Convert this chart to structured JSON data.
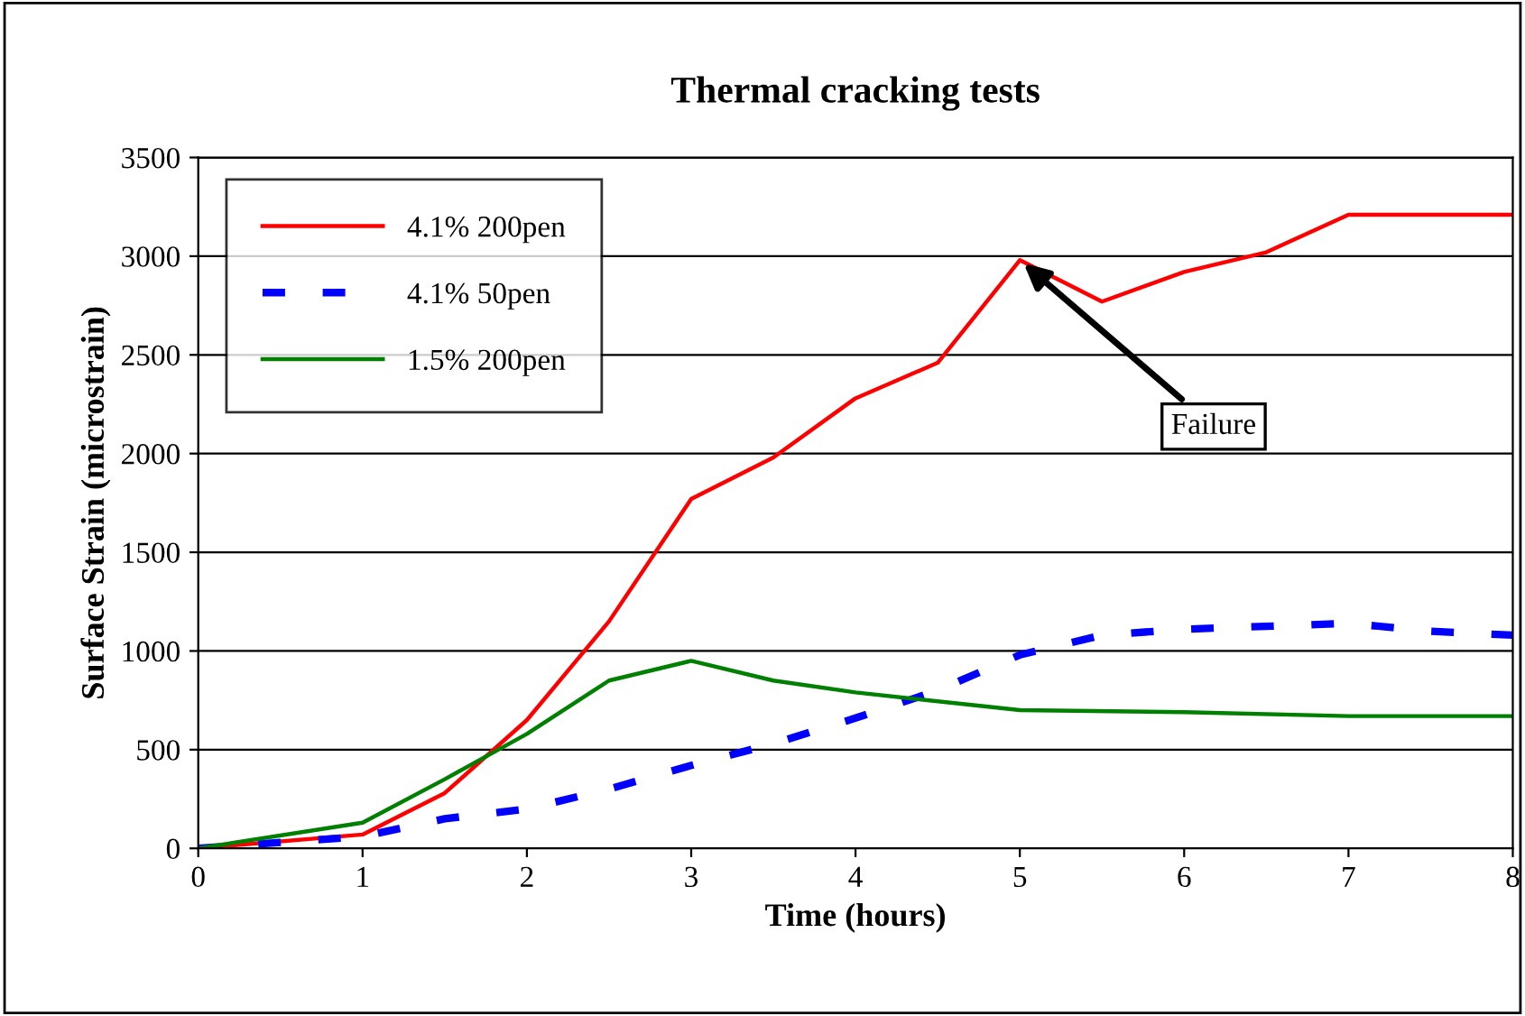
{
  "chart_data": {
    "type": "line",
    "title": "Thermal cracking tests",
    "xlabel": "Time (hours)",
    "ylabel": "Surface Strain (microstrain)",
    "xlim": [
      0,
      8
    ],
    "xticks": [
      0,
      1,
      2,
      3,
      4,
      5,
      6,
      7,
      8
    ],
    "ylim": [
      0,
      3500
    ],
    "yticks": [
      0,
      500,
      1000,
      1500,
      2000,
      2500,
      3000,
      3500
    ],
    "grid": "y",
    "legend": "top left",
    "series": [
      {
        "name": "4.1% 200pen",
        "color": "#ff0000",
        "line_style": "solid",
        "x": [
          0,
          1,
          1.5,
          2,
          2.5,
          3,
          3.5,
          4,
          4.5,
          5,
          5.5,
          6,
          6.5,
          7,
          8
        ],
        "values": [
          0,
          70,
          280,
          650,
          1150,
          1770,
          1980,
          2280,
          2460,
          2980,
          2770,
          2920,
          3020,
          3210,
          3210
        ]
      },
      {
        "name": "4.1% 50pen",
        "color": "#0000ff",
        "line_style": "dashed",
        "x": [
          0,
          0.5,
          1,
          1.5,
          2,
          2.5,
          3,
          3.5,
          4,
          4.5,
          5,
          5.5,
          6,
          7,
          7.5,
          8
        ],
        "values": [
          0,
          30,
          60,
          150,
          200,
          300,
          420,
          530,
          660,
          800,
          980,
          1080,
          1110,
          1140,
          1100,
          1080
        ]
      },
      {
        "name": "1.5% 200pen",
        "color": "#008000",
        "line_style": "solid",
        "x": [
          0,
          1,
          1.5,
          2,
          2.5,
          3,
          3.5,
          4,
          5,
          6,
          7,
          8
        ],
        "values": [
          0,
          130,
          350,
          580,
          850,
          950,
          850,
          790,
          700,
          690,
          670,
          670
        ]
      }
    ],
    "annotations": [
      {
        "text": "Failure",
        "x": 5,
        "y": 2980
      }
    ]
  }
}
